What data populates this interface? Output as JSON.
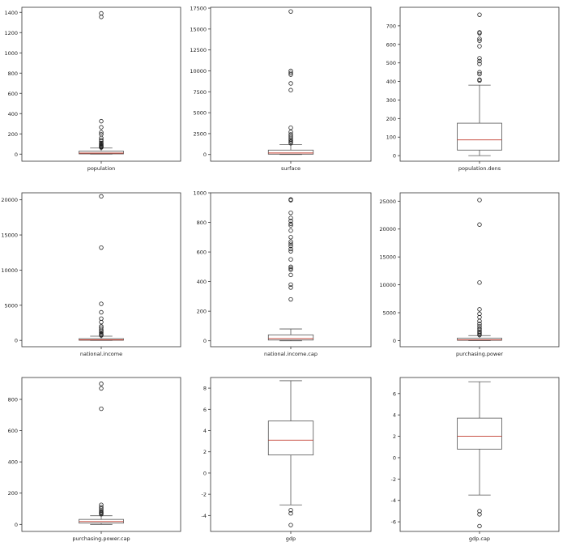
{
  "chart_data": [
    {
      "type": "box",
      "xlabel": "population",
      "ylim": [
        -70,
        1450
      ],
      "yticks": [
        0,
        200,
        400,
        600,
        800,
        1000,
        1200,
        1400
      ],
      "box": {
        "whislo": 0,
        "q1": 2,
        "med": 10,
        "q3": 30,
        "whishi": 60
      },
      "fliers": [
        1390,
        1355,
        325,
        265,
        215,
        195,
        160,
        140,
        125,
        110,
        100,
        95,
        85,
        80,
        75,
        70,
        65
      ]
    },
    {
      "type": "box",
      "xlabel": "surface",
      "ylim": [
        -800,
        17600
      ],
      "yticks": [
        0,
        2500,
        5000,
        7500,
        10000,
        12500,
        15000,
        17500
      ],
      "box": {
        "whislo": 0,
        "q1": 40,
        "med": 180,
        "q3": 530,
        "whishi": 1200
      },
      "fliers": [
        17100,
        10000,
        9750,
        9550,
        8500,
        7700,
        3200,
        2700,
        2400,
        2200,
        2000,
        1800,
        1650,
        1500,
        1350
      ]
    },
    {
      "type": "box",
      "xlabel": "population.dens",
      "ylim": [
        -30,
        800
      ],
      "yticks": [
        0,
        100,
        200,
        300,
        400,
        500,
        600,
        700
      ],
      "box": {
        "whislo": 0,
        "q1": 30,
        "med": 85,
        "q3": 175,
        "whishi": 380
      },
      "fliers": [
        760,
        665,
        660,
        630,
        620,
        590,
        525,
        510,
        495,
        450,
        440,
        410,
        405
      ]
    },
    {
      "type": "box",
      "xlabel": "national.income",
      "ylim": [
        -900,
        21000
      ],
      "yticks": [
        0,
        5000,
        10000,
        15000,
        20000
      ],
      "box": {
        "whislo": 0,
        "q1": 20,
        "med": 80,
        "q3": 250,
        "whishi": 600
      },
      "fliers": [
        20500,
        13200,
        5200,
        4000,
        3100,
        2600,
        2000,
        1800,
        1500,
        1300,
        1100,
        900,
        800,
        700
      ]
    },
    {
      "type": "box",
      "xlabel": "national.income.cap",
      "ylim": [
        -40,
        1000
      ],
      "yticks": [
        0,
        200,
        400,
        600,
        800,
        1000
      ],
      "box": {
        "whislo": 0,
        "q1": 5,
        "med": 15,
        "q3": 40,
        "whishi": 80
      },
      "fliers": [
        955,
        950,
        865,
        830,
        810,
        790,
        780,
        745,
        700,
        670,
        655,
        640,
        620,
        605,
        550,
        500,
        490,
        480,
        445,
        380,
        360,
        280
      ]
    },
    {
      "type": "box",
      "xlabel": "purchasing.power",
      "ylim": [
        -1100,
        26500
      ],
      "yticks": [
        0,
        5000,
        10000,
        15000,
        20000,
        25000
      ],
      "box": {
        "whislo": 0,
        "q1": 50,
        "med": 150,
        "q3": 450,
        "whishi": 900
      },
      "fliers": [
        25200,
        20800,
        10400,
        5600,
        4800,
        4200,
        3500,
        3000,
        2600,
        2200,
        1900,
        1600,
        1400,
        1200,
        1000
      ]
    },
    {
      "type": "box",
      "xlabel": "purchasing.power.cap",
      "ylim": [
        -45,
        940
      ],
      "yticks": [
        0,
        200,
        400,
        600,
        800
      ],
      "box": {
        "whislo": 0,
        "q1": 8,
        "med": 18,
        "q3": 32,
        "whishi": 55
      },
      "fliers": [
        900,
        870,
        740,
        125,
        110,
        100,
        90,
        80,
        75,
        70,
        65
      ]
    },
    {
      "type": "box",
      "xlabel": "gdp",
      "ylim": [
        -5.5,
        9.0
      ],
      "yticks": [
        -4,
        -2,
        0,
        2,
        4,
        6,
        8
      ],
      "box": {
        "whislo": -3.0,
        "q1": 1.7,
        "med": 3.1,
        "q3": 4.9,
        "whishi": 8.7
      },
      "fliers": [
        -3.5,
        -3.8,
        -4.9
      ]
    },
    {
      "type": "box",
      "xlabel": "gdp.cap",
      "ylim": [
        -6.9,
        7.5
      ],
      "yticks": [
        -6,
        -4,
        -2,
        0,
        2,
        4,
        6
      ],
      "box": {
        "whislo": -3.5,
        "q1": 0.8,
        "med": 2.0,
        "q3": 3.7,
        "whishi": 7.1
      },
      "fliers": [
        -5.0,
        -5.3,
        -6.4
      ]
    }
  ]
}
